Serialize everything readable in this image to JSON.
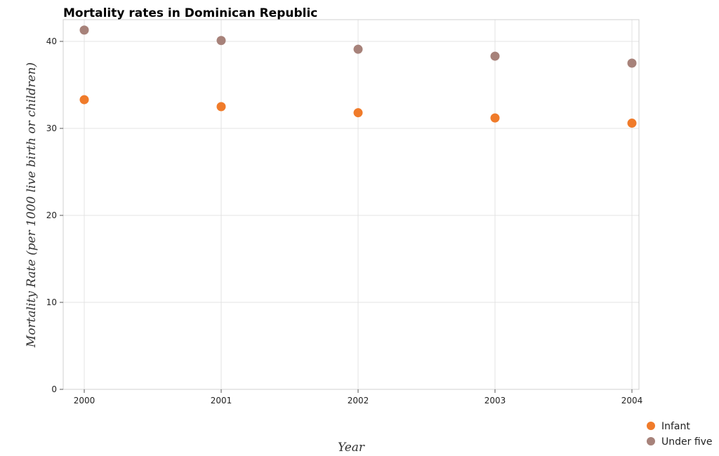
{
  "chart_data": {
    "type": "scatter",
    "title": "Mortality rates in Dominican Republic",
    "xlabel": "Year",
    "ylabel": "Mortality Rate (per 1000 live birth or children)",
    "categories": [
      "2000",
      "2001",
      "2002",
      "2003",
      "2004"
    ],
    "yticks": [
      "0",
      "10",
      "20",
      "30",
      "40"
    ],
    "ylim": [
      0,
      42.5
    ],
    "grid": true,
    "legend_position": "bottom-right",
    "series": [
      {
        "name": "Infant",
        "color": "#f07b2a",
        "values": [
          33.3,
          32.5,
          31.8,
          31.2,
          30.6
        ]
      },
      {
        "name": "Under five",
        "color": "#a7827a",
        "values": [
          41.3,
          40.1,
          39.1,
          38.3,
          37.5
        ]
      }
    ]
  }
}
